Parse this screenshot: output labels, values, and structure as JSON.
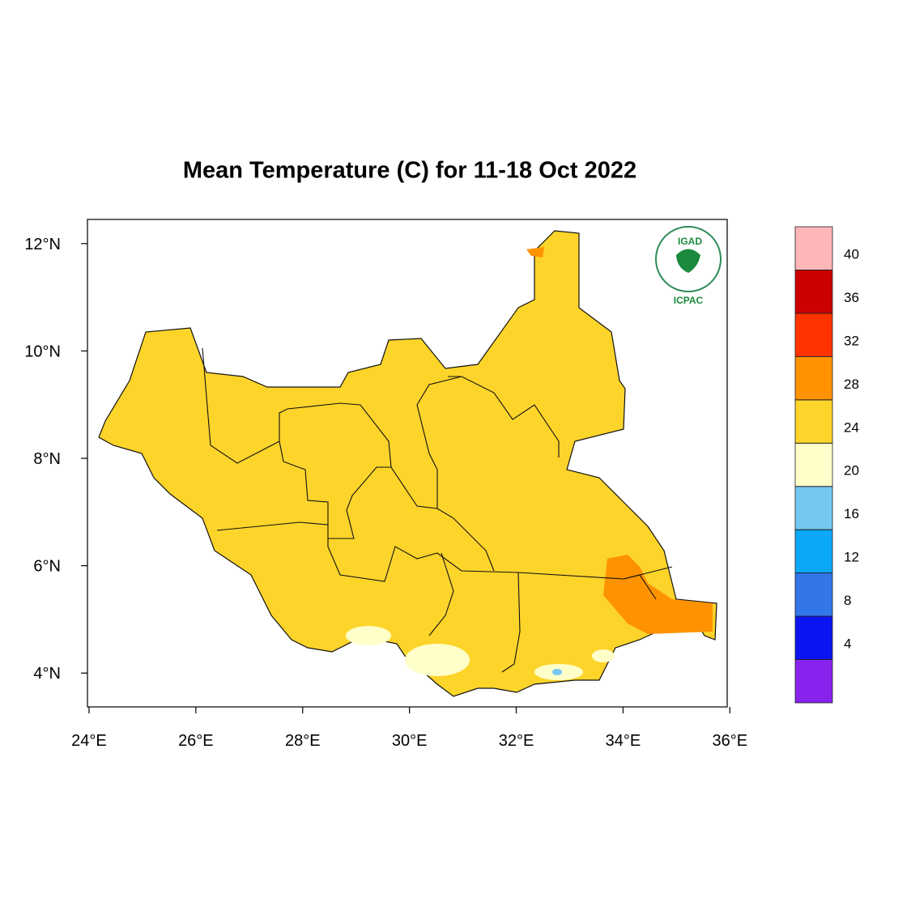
{
  "map": {
    "title": "Mean Temperature (C) for 11-18 Oct 2022",
    "xlim": [
      23.97,
      35.95
    ],
    "ylim": [
      3.37,
      12.45
    ],
    "xticks": [
      {
        "value": 24,
        "label": "24°E"
      },
      {
        "value": 26,
        "label": "26°E"
      },
      {
        "value": 28,
        "label": "28°E"
      },
      {
        "value": 30,
        "label": "30°E"
      },
      {
        "value": 32,
        "label": "32°E"
      },
      {
        "value": 34,
        "label": "34°E"
      },
      {
        "value": 36,
        "label": "36°E"
      }
    ],
    "yticks": [
      {
        "value": 4,
        "label": "4°N"
      },
      {
        "value": 6,
        "label": "6°N"
      },
      {
        "value": 8,
        "label": "8°N"
      },
      {
        "value": 10,
        "label": "10°N"
      },
      {
        "value": 12,
        "label": "12°N"
      }
    ],
    "colorbar": {
      "levels": [
        4,
        8,
        12,
        16,
        20,
        24,
        28,
        32,
        36,
        40
      ],
      "colors": [
        "#8a22ee",
        "#0a14f0",
        "#3276ea",
        "#0aa8f6",
        "#76c8f2",
        "#ffffca",
        "#fdd42a",
        "#ff9200",
        "#ff3200",
        "#cc0000",
        "#ffb6b9"
      ]
    },
    "logo": {
      "name": "IGAD",
      "center": "ICPAC"
    }
  }
}
